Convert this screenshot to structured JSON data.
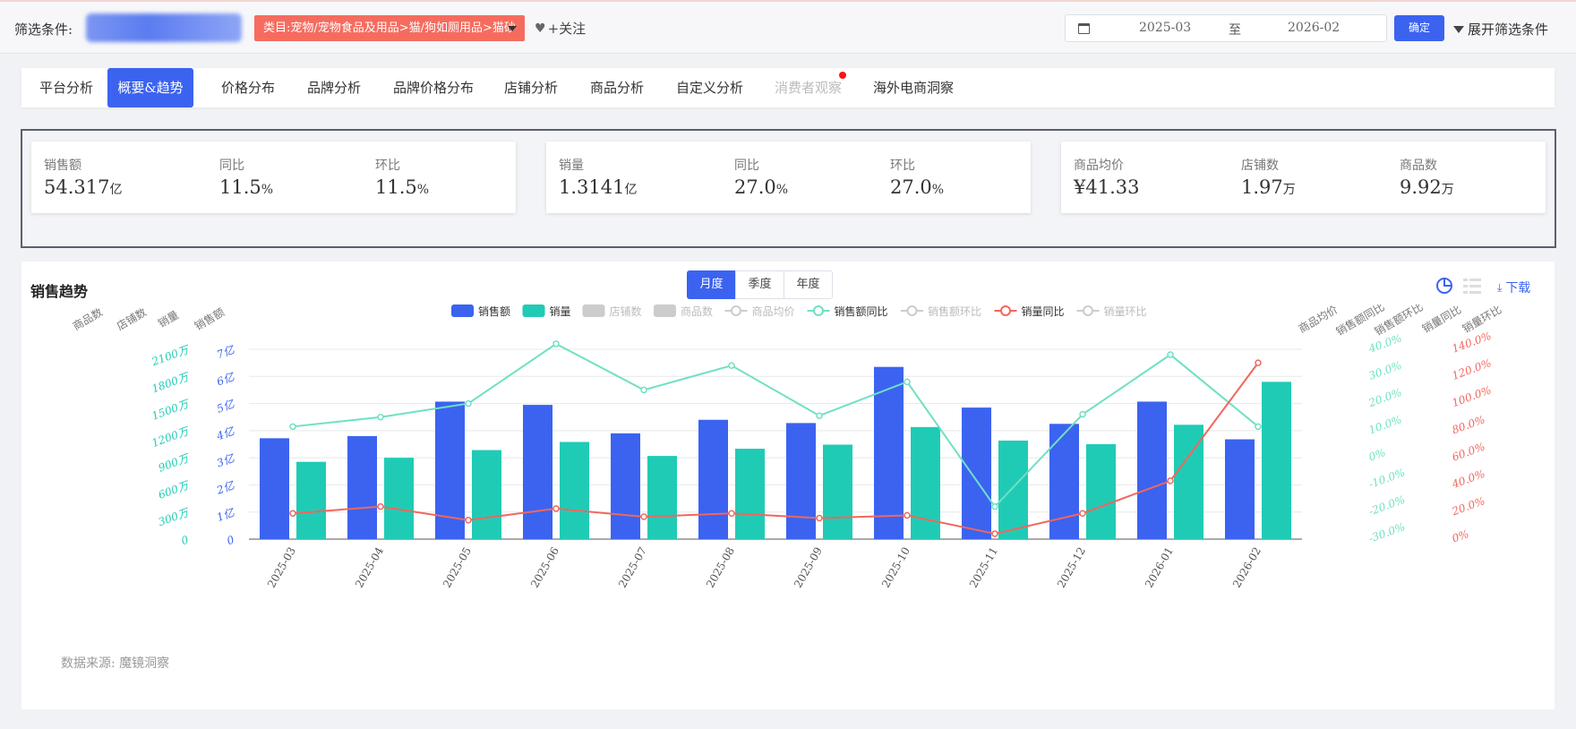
{
  "filter": {
    "label": "筛选条件:",
    "category": "类目:宠物/宠物食品及用品>猫/狗如厕用品>猫砂",
    "follow": "+关注",
    "date_start": "2025-03",
    "date_sep": "至",
    "date_end": "2026-02",
    "confirm": "确定",
    "expand": "展开筛选条件"
  },
  "tabs": [
    {
      "label": "平台分析"
    },
    {
      "label": "概要&趋势"
    },
    {
      "label": "价格分布"
    },
    {
      "label": "品牌分析"
    },
    {
      "label": "品牌价格分布"
    },
    {
      "label": "店铺分析"
    },
    {
      "label": "商品分析"
    },
    {
      "label": "自定义分析"
    },
    {
      "label": "消费者观察"
    },
    {
      "label": "海外电商洞察"
    }
  ],
  "kpi_cards": [
    {
      "items": [
        {
          "label": "销售额",
          "value": "54.317",
          "unit": "亿"
        },
        {
          "label": "同比",
          "value": "11.5",
          "unit": "%"
        },
        {
          "label": "环比",
          "value": "11.5",
          "unit": "%"
        }
      ]
    },
    {
      "items": [
        {
          "label": "销量",
          "value": "1.3141",
          "unit": "亿"
        },
        {
          "label": "同比",
          "value": "27.0",
          "unit": "%"
        },
        {
          "label": "环比",
          "value": "27.0",
          "unit": "%"
        }
      ]
    },
    {
      "items": [
        {
          "label": "商品均价",
          "value": "¥41.33",
          "unit": ""
        },
        {
          "label": "店铺数",
          "value": "1.97",
          "unit": "万"
        },
        {
          "label": "商品数",
          "value": "9.92",
          "unit": "万"
        }
      ]
    }
  ],
  "chart_panel": {
    "title": "销售趋势",
    "periods": [
      "月度",
      "季度",
      "年度"
    ],
    "download": "下载",
    "source": "数据来源: 魔镜洞察"
  },
  "chart_data": {
    "type": "bar",
    "categories": [
      "2025-03",
      "2025-04",
      "2025-05",
      "2025-06",
      "2025-07",
      "2025-08",
      "2025-09",
      "2025-10",
      "2025-11",
      "2025-12",
      "2026-01",
      "2026-02"
    ],
    "series": [
      {
        "name": "销售额",
        "kind": "bar",
        "axis": "sales_amount",
        "color": "#3b63f0",
        "values": [
          3.72,
          3.8,
          5.07,
          4.95,
          3.9,
          4.4,
          4.28,
          6.35,
          4.85,
          4.25,
          5.07,
          3.68
        ]
      },
      {
        "name": "销量",
        "kind": "bar",
        "axis": "sales_volume",
        "color": "#20cbb5",
        "values": [
          855,
          900,
          985,
          1075,
          920,
          1000,
          1045,
          1240,
          1090,
          1050,
          1265,
          1740
        ]
      },
      {
        "name": "销售额同比",
        "kind": "line",
        "axis": "sales_yoy",
        "color": "#6fe0c4",
        "values": [
          11.5,
          15.0,
          20.0,
          42.0,
          25.0,
          34.0,
          15.5,
          28.0,
          -18.0,
          16.0,
          38.0,
          11.5
        ]
      },
      {
        "name": "销量同比",
        "kind": "line",
        "axis": "volume_yoy",
        "color": "#f2665d",
        "values": [
          19.0,
          24.0,
          14.0,
          22.5,
          16.5,
          19.0,
          15.5,
          17.5,
          4.0,
          19.0,
          43.0,
          130.0
        ]
      }
    ],
    "legend": [
      {
        "name": "销售额",
        "type": "bar",
        "color": "#3b63f0",
        "active": true
      },
      {
        "name": "销量",
        "type": "bar",
        "color": "#20cbb5",
        "active": true
      },
      {
        "name": "店铺数",
        "type": "bar",
        "color": "#cccccc",
        "active": false
      },
      {
        "name": "商品数",
        "type": "bar",
        "color": "#cccccc",
        "active": false
      },
      {
        "name": "商品均价",
        "type": "line",
        "color": "#cccccc",
        "active": false
      },
      {
        "name": "销售额同比",
        "type": "line",
        "color": "#6fe0c4",
        "active": true
      },
      {
        "name": "销售额环比",
        "type": "line",
        "color": "#cccccc",
        "active": false
      },
      {
        "name": "销量同比",
        "type": "line",
        "color": "#f2665d",
        "active": true
      },
      {
        "name": "销量环比",
        "type": "line",
        "color": "#cccccc",
        "active": false
      }
    ],
    "left_axis_names": [
      "商品数",
      "店铺数",
      "销量",
      "销售额"
    ],
    "right_axis_names": [
      "商品均价",
      "销售额同比",
      "销售额环比",
      "销量同比",
      "销量环比"
    ],
    "axes": {
      "sales_amount": {
        "ticks": [
          "0",
          "1亿",
          "2亿",
          "3亿",
          "4亿",
          "5亿",
          "6亿",
          "7亿"
        ],
        "range": [
          0,
          7
        ],
        "color": "#3b63f0"
      },
      "sales_volume": {
        "ticks": [
          "0",
          "300万",
          "600万",
          "900万",
          "1200万",
          "1500万",
          "1800万",
          "2100万"
        ],
        "range": [
          0,
          2100
        ],
        "color": "#20cbb5"
      },
      "sales_yoy": {
        "ticks": [
          "-30.0%",
          "-20.0%",
          "-10.0%",
          "0%",
          "10.0%",
          "20.0%",
          "30.0%",
          "40.0%"
        ],
        "range": [
          -30,
          40
        ],
        "color": "#6fe0c4"
      },
      "volume_yoy": {
        "ticks": [
          "0%",
          "20.0%",
          "40.0%",
          "60.0%",
          "80.0%",
          "100.0%",
          "120.0%",
          "140.0%"
        ],
        "range": [
          0,
          140
        ],
        "color": "#f2665d"
      }
    },
    "grid": true
  }
}
